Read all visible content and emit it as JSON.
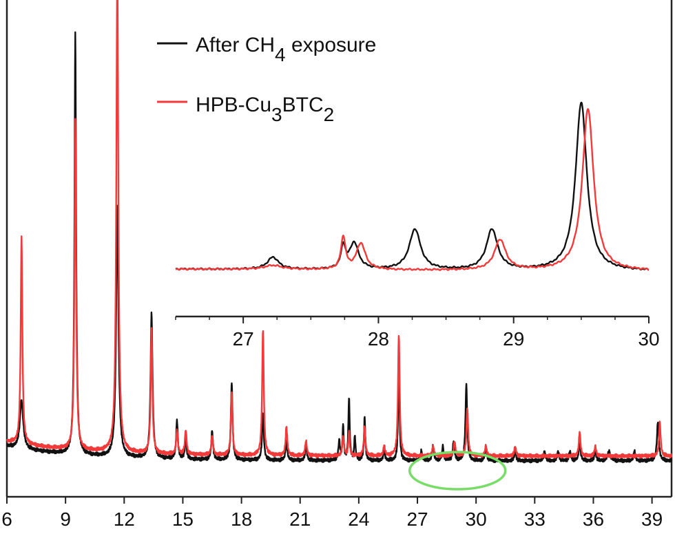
{
  "chart_data": [
    {
      "type": "line",
      "title": "",
      "xlabel": "",
      "ylabel": "",
      "xlim": [
        6,
        40
      ],
      "x_ticks": [
        "6",
        "9",
        "12",
        "15",
        "18",
        "21",
        "24",
        "27",
        "30",
        "33",
        "36",
        "39"
      ],
      "y_ticks": [],
      "grid": false,
      "legend": {
        "placement": "top-center",
        "entries": [
          {
            "label_parts": [
              [
                "After CH",
                "normal"
              ],
              [
                "4",
                "sub"
              ],
              [
                " exposure",
                "normal"
              ]
            ],
            "color": "#111111"
          },
          {
            "label_parts": [
              [
                "HPB-Cu",
                "normal"
              ],
              [
                "3",
                "sub"
              ],
              [
                "BTC",
                "normal"
              ],
              [
                "2",
                "sub"
              ]
            ],
            "color": "#f23a3a"
          }
        ]
      },
      "series": [
        {
          "color": "#111111",
          "baseline": 0.06,
          "peaks": [
            [
              6.75,
              0.1,
              0.1
            ],
            [
              9.5,
              0.87,
              0.05
            ],
            [
              11.65,
              0.52,
              0.07
            ],
            [
              13.4,
              0.3,
              0.06
            ],
            [
              14.7,
              0.08,
              0.05
            ],
            [
              15.15,
              0.04,
              0.05
            ],
            [
              16.5,
              0.06,
              0.05
            ],
            [
              17.5,
              0.16,
              0.05
            ],
            [
              19.1,
              0.1,
              0.05
            ],
            [
              20.3,
              0.04,
              0.05
            ],
            [
              21.3,
              0.03,
              0.05
            ],
            [
              23.0,
              0.04,
              0.05
            ],
            [
              23.2,
              0.07,
              0.04
            ],
            [
              23.5,
              0.13,
              0.04
            ],
            [
              23.8,
              0.05,
              0.04
            ],
            [
              24.3,
              0.09,
              0.04
            ],
            [
              25.3,
              0.02,
              0.05
            ],
            [
              26.05,
              0.2,
              0.04
            ],
            [
              27.2,
              0.02,
              0.05
            ],
            [
              27.8,
              0.03,
              0.05
            ],
            [
              28.3,
              0.03,
              0.05
            ],
            [
              28.85,
              0.04,
              0.05
            ],
            [
              29.5,
              0.16,
              0.05
            ],
            [
              30.5,
              0.03,
              0.05
            ],
            [
              32.0,
              0.02,
              0.05
            ],
            [
              33.5,
              0.02,
              0.05
            ],
            [
              34.2,
              0.02,
              0.05
            ],
            [
              34.8,
              0.02,
              0.05
            ],
            [
              35.3,
              0.04,
              0.05
            ],
            [
              36.1,
              0.02,
              0.05
            ],
            [
              36.8,
              0.02,
              0.08
            ],
            [
              38.1,
              0.02,
              0.05
            ],
            [
              39.3,
              0.08,
              0.06
            ]
          ]
        },
        {
          "color": "#f23a3a",
          "baseline": 0.07,
          "peaks": [
            [
              6.75,
              0.43,
              0.05
            ],
            [
              9.5,
              0.68,
              0.05
            ],
            [
              11.65,
              1.0,
              0.06
            ],
            [
              13.4,
              0.26,
              0.05
            ],
            [
              14.7,
              0.05,
              0.05
            ],
            [
              15.15,
              0.05,
              0.05
            ],
            [
              16.5,
              0.04,
              0.05
            ],
            [
              17.5,
              0.13,
              0.05
            ],
            [
              19.1,
              0.26,
              0.05
            ],
            [
              20.3,
              0.06,
              0.05
            ],
            [
              21.3,
              0.03,
              0.05
            ],
            [
              23.2,
              0.04,
              0.05
            ],
            [
              23.5,
              0.05,
              0.04
            ],
            [
              24.3,
              0.06,
              0.05
            ],
            [
              25.3,
              0.02,
              0.05
            ],
            [
              26.05,
              0.25,
              0.05
            ],
            [
              27.8,
              0.02,
              0.05
            ],
            [
              28.9,
              0.03,
              0.05
            ],
            [
              29.55,
              0.1,
              0.05
            ],
            [
              30.5,
              0.02,
              0.05
            ],
            [
              32.0,
              0.02,
              0.05
            ],
            [
              35.3,
              0.05,
              0.05
            ],
            [
              36.1,
              0.02,
              0.05
            ],
            [
              39.4,
              0.07,
              0.05
            ]
          ]
        }
      ],
      "annotation": {
        "shape": "ellipse",
        "color": "#77dd66",
        "x_range": [
          26.6,
          31.5
        ]
      }
    },
    {
      "type": "line",
      "title": "",
      "xlabel": "",
      "ylabel": "",
      "xlim": [
        26.5,
        30
      ],
      "x_ticks": [
        "27",
        "28",
        "29",
        "30"
      ],
      "grid": false,
      "series": [
        {
          "color": "#111111",
          "peaks": [
            [
              27.22,
              0.06,
              0.05
            ],
            [
              27.74,
              0.11,
              0.02
            ],
            [
              27.82,
              0.13,
              0.04
            ],
            [
              28.27,
              0.2,
              0.05
            ],
            [
              28.84,
              0.2,
              0.05
            ],
            [
              29.5,
              0.83,
              0.05
            ]
          ]
        },
        {
          "color": "#f23a3a",
          "peaks": [
            [
              27.22,
              0.02,
              0.08
            ],
            [
              27.74,
              0.16,
              0.02
            ],
            [
              27.87,
              0.13,
              0.04
            ],
            [
              28.9,
              0.15,
              0.05
            ],
            [
              29.55,
              0.8,
              0.05
            ]
          ]
        }
      ]
    }
  ]
}
